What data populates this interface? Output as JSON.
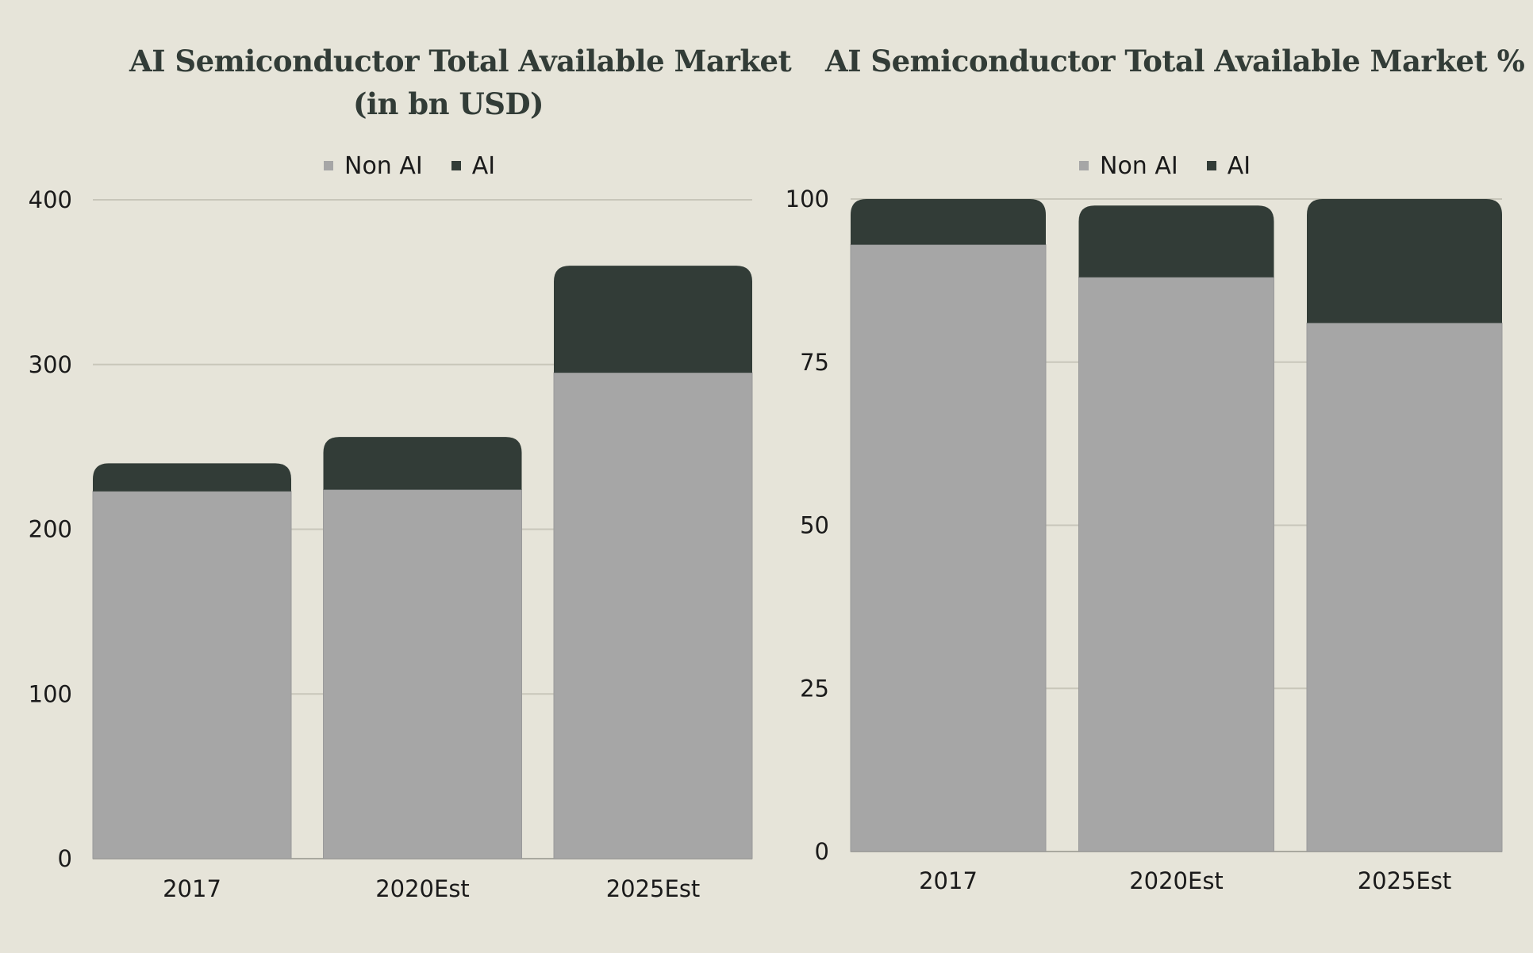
{
  "colors": {
    "background": "#E6E4D9",
    "non_ai": "#A6A6A6",
    "ai": "#323C37",
    "title": "#323C37",
    "gridline": "#C8C6BA"
  },
  "chart_data": [
    {
      "type": "bar",
      "stacked": true,
      "title": "AI Semiconductor Total Available Market (in bn USD)",
      "title_lines": [
        "AI Semiconductor Total Available Market",
        "(in bn USD)"
      ],
      "categories": [
        "2017",
        "2020Est",
        "2025Est"
      ],
      "series": [
        {
          "name": "Non AI",
          "values": [
            223,
            224,
            295
          ]
        },
        {
          "name": "AI",
          "values": [
            17,
            32,
            65
          ]
        }
      ],
      "xlabel": "",
      "ylabel": "",
      "ylim": [
        0,
        400
      ],
      "yticks": [
        "0",
        "100",
        "200",
        "300",
        "400"
      ],
      "ytick_values": [
        0,
        100,
        200,
        300,
        400
      ],
      "grid": true,
      "legend": {
        "position": "top-center",
        "entries": [
          "Non AI",
          "AI"
        ]
      }
    },
    {
      "type": "bar",
      "stacked": true,
      "title": "AI Semiconductor Total Available Market %",
      "title_lines": [
        "AI Semiconductor Total Available Market %"
      ],
      "categories": [
        "2017",
        "2020Est",
        "2025Est"
      ],
      "series": [
        {
          "name": "Non AI",
          "values": [
            93,
            88,
            81
          ]
        },
        {
          "name": "AI",
          "values": [
            7,
            11,
            19
          ]
        }
      ],
      "xlabel": "",
      "ylabel": "",
      "ylim": [
        0,
        100
      ],
      "yticks": [
        "0",
        "25",
        "50",
        "75",
        "100"
      ],
      "ytick_values": [
        0,
        25,
        50,
        75,
        100
      ],
      "grid": true,
      "legend": {
        "position": "top-center",
        "entries": [
          "Non AI",
          "AI"
        ]
      }
    }
  ]
}
